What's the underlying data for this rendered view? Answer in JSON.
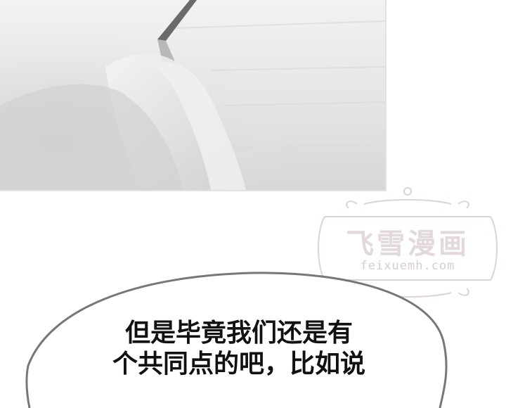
{
  "panel": {
    "image_description": "grayscale close-up of a hand holding a pen"
  },
  "watermark": {
    "logo_text": "飞雪漫画",
    "url_text": "feixuemh.com"
  },
  "speech_bubble": {
    "line1": "但是毕竟我们还是有",
    "line2": "个共同点的吧，比如说"
  }
}
